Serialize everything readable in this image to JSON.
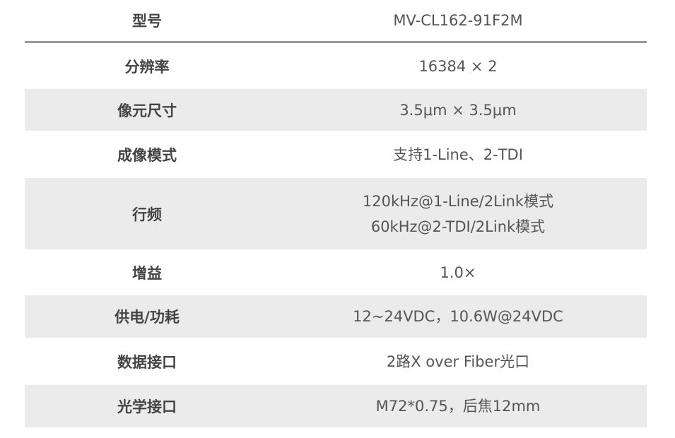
{
  "header": {
    "label": "型号",
    "value": "MV-CL162-91F2M"
  },
  "rows": [
    {
      "label": "分辨率",
      "values": [
        "16384 × 2"
      ]
    },
    {
      "label": "像元尺寸",
      "values": [
        "3.5μm × 3.5μm"
      ]
    },
    {
      "label": "成像模式",
      "values": [
        "支持1-Line、2-TDI"
      ]
    },
    {
      "label": "行频",
      "values": [
        "120kHz@1-Line/2Link模式",
        "60kHz@2-TDI/2Link模式"
      ]
    },
    {
      "label": "增益",
      "values": [
        "1.0×"
      ]
    },
    {
      "label": "供电/功耗",
      "values": [
        "12~24VDC，10.6W@24VDC"
      ]
    },
    {
      "label": "数据接口",
      "values": [
        "2路X over Fiber光口"
      ]
    },
    {
      "label": "光学接口",
      "values": [
        "M72*0.75，后焦12mm"
      ]
    }
  ]
}
